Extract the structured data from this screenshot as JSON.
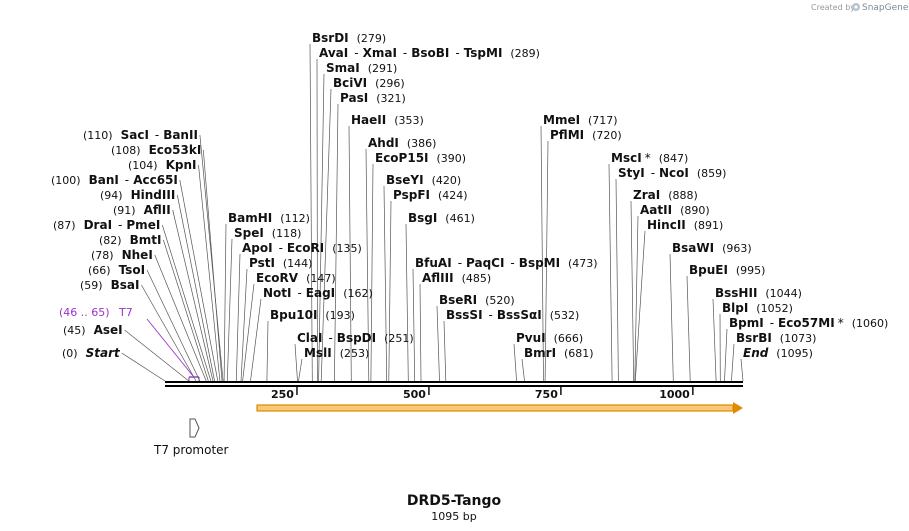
{
  "header": {
    "credit_prefix": "Created by",
    "credit_brand": "SnapGene"
  },
  "map": {
    "title": "DRD5-Tango",
    "subtitle": "1095 bp",
    "length": 1095,
    "ticks": [
      "250",
      "500",
      "750",
      "1000"
    ],
    "tick_values": [
      250,
      500,
      750,
      1000
    ]
  },
  "feature_labels": {
    "t7_range": "(46 .. 65)",
    "t7_name": "T7",
    "promoter_label": "T7 promoter"
  },
  "sites": [
    {
      "parts": [
        "(0)",
        "Start"
      ],
      "pos": 0
    },
    {
      "parts": [
        "(45)",
        "AseI"
      ],
      "pos": 45
    },
    {
      "parts": [
        "(59)",
        "BsaI"
      ],
      "pos": 59
    },
    {
      "parts": [
        "(66)",
        "TsoI"
      ],
      "pos": 66
    },
    {
      "parts": [
        "(78)",
        "NheI"
      ],
      "pos": 78
    },
    {
      "parts": [
        "(82)",
        "BmtI"
      ],
      "pos": 82
    },
    {
      "parts": [
        "(87)",
        "DraI",
        "-",
        "PmeI"
      ],
      "pos": 87
    },
    {
      "parts": [
        "(91)",
        "AflII"
      ],
      "pos": 91
    },
    {
      "parts": [
        "(94)",
        "HindIII"
      ],
      "pos": 94
    },
    {
      "parts": [
        "(100)",
        "BanI",
        "-",
        "Acc65I"
      ],
      "pos": 100
    },
    {
      "parts": [
        "(104)",
        "KpnI"
      ],
      "pos": 104
    },
    {
      "parts": [
        "(108)",
        "Eco53kI"
      ],
      "pos": 108
    },
    {
      "parts": [
        "(110)",
        "SacI",
        "-",
        "BanII"
      ],
      "pos": 110
    },
    {
      "parts": [
        "BamHI",
        "(112)"
      ],
      "pos": 112
    },
    {
      "parts": [
        "SpeI",
        "(118)"
      ],
      "pos": 118
    },
    {
      "parts": [
        "ApoI",
        "-",
        "EcoRI",
        "(135)"
      ],
      "pos": 135
    },
    {
      "parts": [
        "PstI",
        "(144)"
      ],
      "pos": 144
    },
    {
      "parts": [
        "EcoRV",
        "(147)"
      ],
      "pos": 147
    },
    {
      "parts": [
        "NotI",
        "-",
        "EagI",
        "(162)"
      ],
      "pos": 162
    },
    {
      "parts": [
        "Bpu10I",
        "(193)"
      ],
      "pos": 193
    },
    {
      "parts": [
        "ClaI",
        "-",
        "BspDI",
        "(251)"
      ],
      "pos": 251
    },
    {
      "parts": [
        "MslI",
        "(253)"
      ],
      "pos": 253
    },
    {
      "parts": [
        "BsrDI",
        "(279)"
      ],
      "pos": 279
    },
    {
      "parts": [
        "AvaI",
        "-",
        "XmaI",
        "-",
        "BsoBI",
        "-",
        "TspMI",
        "(289)"
      ],
      "pos": 289
    },
    {
      "parts": [
        "SmaI",
        "(291)"
      ],
      "pos": 291
    },
    {
      "parts": [
        "BciVI",
        "(296)"
      ],
      "pos": 296
    },
    {
      "parts": [
        "PasI",
        "(321)"
      ],
      "pos": 321
    },
    {
      "parts": [
        "HaeII",
        "(353)"
      ],
      "pos": 353
    },
    {
      "parts": [
        "AhdI",
        "(386)"
      ],
      "pos": 386
    },
    {
      "parts": [
        "EcoP15I",
        "(390)"
      ],
      "pos": 390
    },
    {
      "parts": [
        "BseYI",
        "(420)"
      ],
      "pos": 420
    },
    {
      "parts": [
        "PspFI",
        "(424)"
      ],
      "pos": 424
    },
    {
      "parts": [
        "BsgI",
        "(461)"
      ],
      "pos": 461
    },
    {
      "parts": [
        "BfuAI",
        "-",
        "PaqCI",
        "-",
        "BspMI",
        "(473)"
      ],
      "pos": 473
    },
    {
      "parts": [
        "AflIII",
        "(485)"
      ],
      "pos": 485
    },
    {
      "parts": [
        "BseRI",
        "(520)"
      ],
      "pos": 520
    },
    {
      "parts": [
        "BssSI",
        "-",
        "BssSαI",
        "(532)"
      ],
      "pos": 532
    },
    {
      "parts": [
        "PvuI",
        "(666)"
      ],
      "pos": 666
    },
    {
      "parts": [
        "BmrI",
        "(681)"
      ],
      "pos": 681
    },
    {
      "parts": [
        "MmeI",
        "(717)"
      ],
      "pos": 717
    },
    {
      "parts": [
        "PflMI",
        "(720)"
      ],
      "pos": 720
    },
    {
      "parts": [
        "MscI",
        "*",
        "(847)"
      ],
      "pos": 847
    },
    {
      "parts": [
        "StyI",
        "-",
        "NcoI",
        "(859)"
      ],
      "pos": 859
    },
    {
      "parts": [
        "ZraI",
        "(888)"
      ],
      "pos": 888
    },
    {
      "parts": [
        "AatII",
        "(890)"
      ],
      "pos": 890
    },
    {
      "parts": [
        "HincII",
        "(891)"
      ],
      "pos": 891
    },
    {
      "parts": [
        "BsaWI",
        "(963)"
      ],
      "pos": 963
    },
    {
      "parts": [
        "BpuEI",
        "(995)"
      ],
      "pos": 995
    },
    {
      "parts": [
        "BssHII",
        "(1044)"
      ],
      "pos": 1044
    },
    {
      "parts": [
        "BlpI",
        "(1052)"
      ],
      "pos": 1052
    },
    {
      "parts": [
        "BpmI",
        "-",
        "Eco57MI",
        "*",
        "(1060)"
      ],
      "pos": 1060
    },
    {
      "parts": [
        "BsrBI",
        "(1073)"
      ],
      "pos": 1073
    },
    {
      "parts": [
        "End",
        "(1095)"
      ],
      "pos": 1095
    }
  ],
  "colors": {
    "backbone": "#000000",
    "orf_fill": "#f7c77a",
    "orf_stroke": "#e08a00",
    "feature": "#9a33cc",
    "credit": "#9a9a9a"
  }
}
